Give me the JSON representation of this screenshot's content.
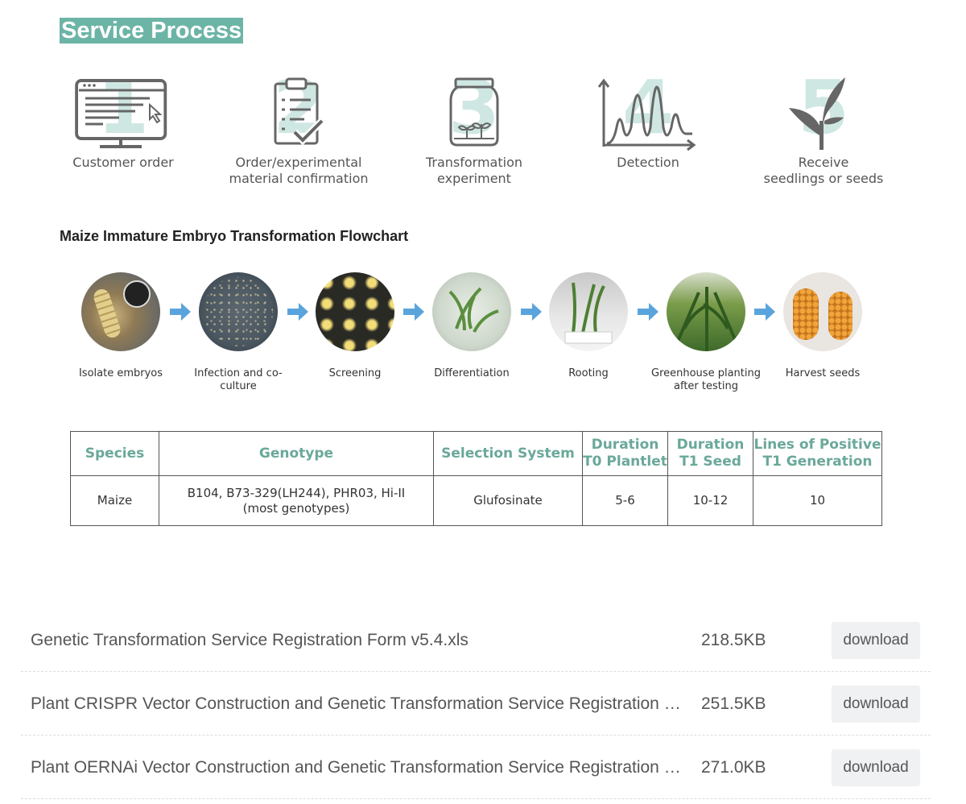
{
  "header": {
    "title": "Service Process"
  },
  "steps": [
    {
      "number": "1",
      "label_lines": [
        "Customer order"
      ],
      "icon": "monitor-icon"
    },
    {
      "number": "2",
      "label_lines": [
        "Order/experimental",
        "material confirmation"
      ],
      "icon": "clipboard-check-icon"
    },
    {
      "number": "3",
      "label_lines": [
        "Transformation",
        "experiment"
      ],
      "icon": "jar-seedling-icon"
    },
    {
      "number": "4",
      "label_lines": [
        "Detection"
      ],
      "icon": "peaks-graph-icon"
    },
    {
      "number": "5",
      "label_lines": [
        "Receive",
        "seedlings or seeds"
      ],
      "icon": "plant-icon"
    }
  ],
  "flowchart": {
    "title": "Maize Immature Embryo Transformation Flowchart",
    "stages": [
      {
        "lines": [
          "Isolate embryos"
        ]
      },
      {
        "lines": [
          "Infection and co-culture"
        ]
      },
      {
        "lines": [
          "Screening"
        ]
      },
      {
        "lines": [
          "Differentiation"
        ]
      },
      {
        "lines": [
          "Rooting"
        ]
      },
      {
        "lines": [
          "Greenhouse planting",
          "after testing"
        ]
      },
      {
        "lines": [
          "Harvest seeds"
        ]
      }
    ],
    "arrow_color": "#5aa4dc"
  },
  "table": {
    "headers": [
      [
        "Species"
      ],
      [
        "Genotype"
      ],
      [
        "Selection System"
      ],
      [
        "Duration",
        "T0 Plantlet"
      ],
      [
        "Duration",
        "T1 Seed"
      ],
      [
        "Lines of Positive",
        "T1 Generation"
      ]
    ],
    "rows": [
      [
        [
          "Maize"
        ],
        [
          "B104, B73-329(LH244),  PHR03, Hi-II",
          "(most genotypes)"
        ],
        [
          "Glufosinate"
        ],
        [
          "5-6"
        ],
        [
          "10-12"
        ],
        [
          "10"
        ]
      ]
    ]
  },
  "downloads": [
    {
      "name": "Genetic Transformation Service Registration Form v5.4.xls",
      "size": "218.5KB",
      "button": "download"
    },
    {
      "name": "Plant CRISPR Vector Construction and Genetic Transformation Service Registration Form",
      "size": "251.5KB",
      "button": "download"
    },
    {
      "name": "Plant OERNAi Vector Construction and Genetic Transformation Service Registration Form",
      "size": "271.0KB",
      "button": "download"
    }
  ],
  "colors": {
    "accent": "#6cb4a6",
    "number_watermark": "#cfe7e2",
    "table_header": "#6aa89a",
    "button_bg": "#f0f1f3"
  }
}
